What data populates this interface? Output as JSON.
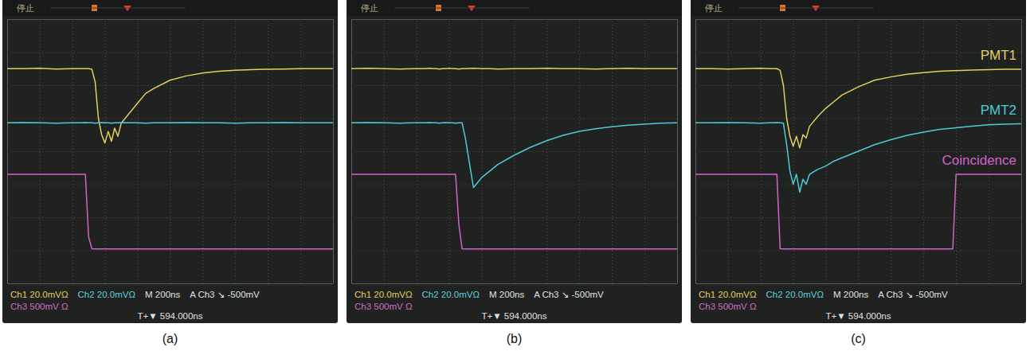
{
  "chart_data": [
    {
      "type": "line",
      "title": "(a)",
      "annotations": [
        "停止",
        "Ch1 20.0mVΩ",
        "Ch2 20.0mVΩ",
        "M 200ns",
        "A  Ch3 ↘ -500mV",
        "Ch3 500mV Ω",
        "T+▼ 594.000ns"
      ],
      "x": [
        0,
        100,
        200,
        300,
        400,
        450,
        480,
        500,
        520,
        540,
        560,
        580,
        600,
        620,
        640,
        660,
        680,
        700,
        750,
        800,
        850,
        900,
        1000,
        1100,
        1200,
        1300,
        1400,
        1500,
        1580,
        1600,
        1700,
        1800,
        1900,
        2000
      ],
      "series": [
        {
          "color": "#e3cf5c",
          "values": [
            2.5,
            2.5,
            2.51,
            2.49,
            2.5,
            2.5,
            2.5,
            2.5,
            2.48,
            2.1,
            1.0,
            0.5,
            0.25,
            0.6,
            0.3,
            0.7,
            0.45,
            0.85,
            1.15,
            1.45,
            1.75,
            1.9,
            2.15,
            2.28,
            2.37,
            2.42,
            2.45,
            2.47,
            2.48,
            2.48,
            2.49,
            2.5,
            2.5,
            2.5
          ]
        },
        {
          "color": "#4fc9d6",
          "values": [
            0.86,
            0.87,
            0.86,
            0.85,
            0.86,
            0.86,
            0.87,
            0.86,
            0.86,
            0.85,
            0.86,
            0.87,
            0.86,
            0.86,
            0.85,
            0.86,
            0.86,
            0.87,
            0.86,
            0.86,
            0.85,
            0.86,
            0.86,
            0.87,
            0.86,
            0.86,
            0.85,
            0.86,
            0.86,
            0.86,
            0.87,
            0.86,
            0.86,
            0.86
          ]
        },
        {
          "color": "#d264c8",
          "values": [
            -0.7,
            -0.7,
            -0.7,
            -0.7,
            -0.7,
            -0.7,
            -0.7,
            -2.6,
            -2.95,
            -2.96,
            -2.96,
            -2.96,
            -2.96,
            -2.96,
            -2.96,
            -2.96,
            -2.96,
            -2.96,
            -2.96,
            -2.96,
            -2.96,
            -2.96,
            -2.96,
            -2.96,
            -2.96,
            -2.96,
            -2.96,
            -2.96,
            -2.96,
            -2.96,
            -2.96,
            -2.96,
            -2.96,
            -2.96
          ]
        }
      ],
      "xlim": [
        0,
        2000
      ],
      "xticks": [
        0,
        200,
        400,
        600,
        800,
        1000,
        1200,
        1400,
        1600,
        1800,
        2000
      ],
      "ylim": [
        -4,
        4
      ],
      "yticks": [
        -4,
        -3,
        -2,
        -1,
        0,
        1,
        2,
        3,
        4
      ],
      "grid": true,
      "tick_labels": false
    },
    {
      "type": "line",
      "title": "(b)",
      "annotations": [
        "停止",
        "Ch1 20.0mVΩ",
        "Ch2 20.0mVΩ",
        "M 200ns",
        "A  Ch3 ↘ -500mV",
        "Ch3 500mV Ω",
        "T+▼ 594.000ns"
      ],
      "x": [
        0,
        100,
        200,
        300,
        400,
        450,
        480,
        500,
        520,
        540,
        560,
        580,
        600,
        620,
        640,
        660,
        680,
        700,
        750,
        800,
        850,
        900,
        1000,
        1100,
        1200,
        1300,
        1400,
        1500,
        1580,
        1600,
        1700,
        1800,
        1900,
        2000
      ],
      "series": [
        {
          "color": "#e3cf5c",
          "values": [
            2.5,
            2.51,
            2.5,
            2.49,
            2.5,
            2.5,
            2.51,
            2.5,
            2.5,
            2.49,
            2.5,
            2.5,
            2.51,
            2.5,
            2.5,
            2.49,
            2.5,
            2.5,
            2.51,
            2.5,
            2.5,
            2.49,
            2.5,
            2.5,
            2.51,
            2.5,
            2.5,
            2.49,
            2.5,
            2.5,
            2.51,
            2.5,
            2.5,
            2.5
          ]
        },
        {
          "color": "#4fc9d6",
          "values": [
            0.86,
            0.87,
            0.86,
            0.85,
            0.86,
            0.86,
            0.87,
            0.86,
            0.86,
            0.85,
            0.86,
            0.87,
            0.86,
            0.86,
            0.85,
            0.86,
            0.86,
            0.4,
            -1.1,
            -0.8,
            -0.6,
            -0.4,
            -0.12,
            0.12,
            0.32,
            0.48,
            0.6,
            0.68,
            0.73,
            0.74,
            0.79,
            0.82,
            0.85,
            0.86
          ]
        },
        {
          "color": "#d264c8",
          "values": [
            -0.7,
            -0.7,
            -0.7,
            -0.7,
            -0.7,
            -0.7,
            -0.7,
            -0.7,
            -0.7,
            -0.7,
            -0.7,
            -0.7,
            -0.7,
            -0.7,
            -0.7,
            -2.2,
            -2.95,
            -2.96,
            -2.96,
            -2.96,
            -2.96,
            -2.96,
            -2.96,
            -2.96,
            -2.96,
            -2.96,
            -2.96,
            -2.96,
            -2.96,
            -2.96,
            -2.96,
            -2.96,
            -2.96,
            -2.96
          ]
        }
      ],
      "xlim": [
        0,
        2000
      ],
      "xticks": [
        0,
        200,
        400,
        600,
        800,
        1000,
        1200,
        1400,
        1600,
        1800,
        2000
      ],
      "ylim": [
        -4,
        4
      ],
      "yticks": [
        -4,
        -3,
        -2,
        -1,
        0,
        1,
        2,
        3,
        4
      ],
      "grid": true,
      "tick_labels": false
    },
    {
      "type": "line",
      "title": "(c)",
      "annotations": [
        "停止",
        "Ch1 20.0mVΩ",
        "Ch2 20.0mVΩ",
        "M 200ns",
        "A  Ch3 ↘ -500mV",
        "Ch3 500mV Ω",
        "T+▼ 594.000ns"
      ],
      "x": [
        0,
        100,
        200,
        300,
        400,
        450,
        480,
        500,
        520,
        540,
        560,
        580,
        600,
        620,
        640,
        660,
        680,
        700,
        750,
        800,
        850,
        900,
        1000,
        1100,
        1200,
        1300,
        1400,
        1500,
        1580,
        1600,
        1700,
        1800,
        1900,
        2000
      ],
      "series": [
        {
          "name": "PMT1",
          "color": "#e3cf5c",
          "values": [
            2.5,
            2.5,
            2.49,
            2.5,
            2.51,
            2.5,
            2.5,
            2.5,
            2.45,
            2.0,
            1.0,
            0.45,
            0.15,
            0.45,
            0.1,
            0.5,
            0.4,
            0.75,
            1.05,
            1.3,
            1.5,
            1.7,
            1.95,
            2.15,
            2.25,
            2.33,
            2.38,
            2.42,
            2.44,
            2.44,
            2.46,
            2.47,
            2.48,
            2.48
          ]
        },
        {
          "name": "PMT2",
          "color": "#4fc9d6",
          "values": [
            0.86,
            0.86,
            0.87,
            0.86,
            0.85,
            0.86,
            0.86,
            0.87,
            0.86,
            0.85,
            0.2,
            -0.6,
            -1.0,
            -0.7,
            -1.24,
            -0.85,
            -1.0,
            -0.7,
            -0.55,
            -0.45,
            -0.3,
            -0.2,
            0.0,
            0.2,
            0.35,
            0.48,
            0.58,
            0.66,
            0.7,
            0.71,
            0.76,
            0.8,
            0.82,
            0.83
          ]
        },
        {
          "name": "Coincidence",
          "color": "#d264c8",
          "values": [
            -0.7,
            -0.7,
            -0.7,
            -0.7,
            -0.7,
            -0.7,
            -0.7,
            -0.7,
            -2.95,
            -2.96,
            -2.96,
            -2.96,
            -2.96,
            -2.96,
            -2.96,
            -2.96,
            -2.96,
            -2.96,
            -2.96,
            -2.96,
            -2.96,
            -2.96,
            -2.96,
            -2.96,
            -2.96,
            -2.96,
            -2.96,
            -2.96,
            -2.96,
            -0.7,
            -0.7,
            -0.7,
            -0.7,
            -0.7
          ]
        }
      ],
      "xlim": [
        0,
        2000
      ],
      "xticks": [
        0,
        200,
        400,
        600,
        800,
        1000,
        1200,
        1400,
        1600,
        1800,
        2000
      ],
      "ylim": [
        -4,
        4
      ],
      "yticks": [
        -4,
        -3,
        -2,
        -1,
        0,
        1,
        2,
        3,
        4
      ],
      "grid": true,
      "tick_labels": false,
      "legend": "right"
    }
  ]
}
